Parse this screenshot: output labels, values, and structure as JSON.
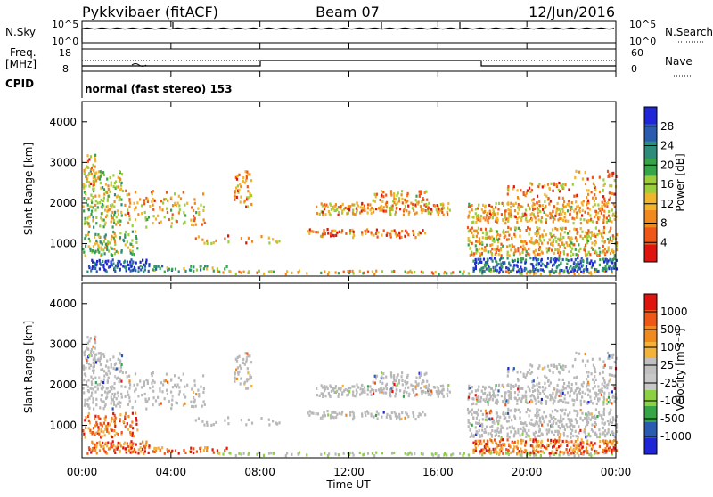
{
  "header": {
    "station": "Pykkvibaer (fitACF)",
    "beam": "Beam 07",
    "date": "12/Jun/2016"
  },
  "panels": {
    "nsky_label": "N.Sky",
    "nsearch_label": "N.Search",
    "nsky_ticks": [
      "10^5",
      "10^0"
    ],
    "nsearch_ticks": [
      "10^5",
      "10^0"
    ],
    "freq_label_line1": "Freq.",
    "freq_label_line2": "[MHz]",
    "freq_ticks": [
      "18",
      "8"
    ],
    "nave_label": "Nave",
    "nave_ticks": [
      "60",
      "0"
    ],
    "cpid_label": "CPID",
    "cpid_text": "normal (fast stereo) 153"
  },
  "colors": {
    "power_scale": [
      "#1e26d8",
      "#2a5bb0",
      "#2e8d7a",
      "#35a548",
      "#9ccd3b",
      "#f1b52b",
      "#f08a1f",
      "#ee5718",
      "#e0140f"
    ],
    "velocity_scale": [
      "#e0140f",
      "#ee5718",
      "#f08a1f",
      "#f5b23a",
      "#c0c0c0",
      "#c8c8c8",
      "#8cd044",
      "#35a548",
      "#2a5bb0",
      "#1e26d8"
    ],
    "ground_scatter": "#b8b8b8"
  },
  "chart_data": [
    {
      "type": "heatmap",
      "name": "power",
      "ylabel": "Slant Range [km]",
      "ylim": [
        200,
        4500
      ],
      "yticks": [
        "4000",
        "3000",
        "2000",
        "1000"
      ],
      "xlim": [
        "00:00",
        "24:00"
      ],
      "colorbar_label": "Power [dB]",
      "colorbar_ticks": [
        "28",
        "24",
        "20",
        "16",
        "12",
        "8",
        "4"
      ],
      "colorbar_range": [
        0,
        30
      ]
    },
    {
      "type": "heatmap",
      "name": "velocity",
      "ylabel": "Slant Range [km]",
      "ylim": [
        200,
        4500
      ],
      "yticks": [
        "4000",
        "3000",
        "2000",
        "1000"
      ],
      "xlabel": "Time UT",
      "xticks": [
        "00:00",
        "04:00",
        "08:00",
        "12:00",
        "16:00",
        "20:00",
        "00:00"
      ],
      "colorbar_label": "Velocity [m s⁻¹]",
      "colorbar_ticks": [
        "1000",
        "500",
        "100",
        "25",
        "-25",
        "-100",
        "-500",
        "-1000"
      ]
    }
  ]
}
